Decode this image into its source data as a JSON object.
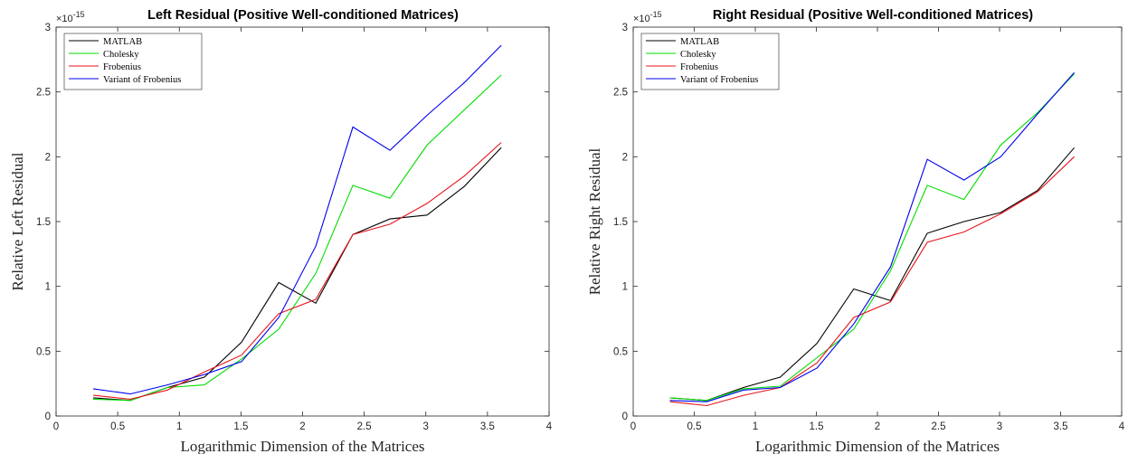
{
  "chart_data": [
    {
      "type": "line",
      "title": "Left Residual (Positive Well-conditioned Matrices)",
      "xlabel": "Logarithmic Dimension of the Matrices",
      "ylabel": "Relative Left Residual",
      "y_exponent_base": "×10",
      "y_exponent_power": "-15",
      "xlim": [
        0,
        4
      ],
      "ylim": [
        0,
        3
      ],
      "xticks": [
        "0",
        "0.5",
        "1",
        "1.5",
        "2",
        "2.5",
        "3",
        "3.5",
        "4"
      ],
      "yticks": [
        "0",
        "0.5",
        "1",
        "1.5",
        "2",
        "2.5",
        "3"
      ],
      "grid": false,
      "legend_position": "top-left",
      "x": [
        0.301,
        0.602,
        0.903,
        1.204,
        1.505,
        1.806,
        2.107,
        2.408,
        2.709,
        3.01,
        3.311,
        3.612
      ],
      "series": [
        {
          "name": "MATLAB",
          "color": "#000000",
          "values": [
            0.14,
            0.12,
            0.22,
            0.3,
            0.57,
            1.03,
            0.87,
            1.4,
            1.52,
            1.55,
            1.77,
            2.07
          ]
        },
        {
          "name": "Cholesky",
          "color": "#00dd00",
          "values": [
            0.13,
            0.12,
            0.22,
            0.24,
            0.44,
            0.67,
            1.1,
            1.78,
            1.68,
            2.09,
            2.36,
            2.63
          ]
        },
        {
          "name": "Frobenius",
          "color": "#e8141e",
          "values": [
            0.16,
            0.13,
            0.2,
            0.34,
            0.47,
            0.79,
            0.9,
            1.4,
            1.48,
            1.64,
            1.85,
            2.11
          ]
        },
        {
          "name": "Variant of Frobenius",
          "color": "#0000ee",
          "values": [
            0.21,
            0.17,
            0.24,
            0.32,
            0.42,
            0.76,
            1.31,
            2.23,
            2.05,
            2.32,
            2.57,
            2.86
          ]
        }
      ]
    },
    {
      "type": "line",
      "title": "Right Residual (Positive Well-conditioned Matrices)",
      "xlabel": "Logarithmic Dimension of the Matrices",
      "ylabel": "Relative Right Residual",
      "y_exponent_base": "×10",
      "y_exponent_power": "-15",
      "xlim": [
        0,
        4
      ],
      "ylim": [
        0,
        3
      ],
      "xticks": [
        "0",
        "0.5",
        "1",
        "1.5",
        "2",
        "2.5",
        "3",
        "3.5",
        "4"
      ],
      "yticks": [
        "0",
        "0.5",
        "1",
        "1.5",
        "2",
        "2.5",
        "3"
      ],
      "grid": false,
      "legend_position": "top-left",
      "x": [
        0.301,
        0.602,
        0.903,
        1.204,
        1.505,
        1.806,
        2.107,
        2.408,
        2.709,
        3.01,
        3.311,
        3.612
      ],
      "series": [
        {
          "name": "MATLAB",
          "color": "#000000",
          "values": [
            0.14,
            0.12,
            0.22,
            0.3,
            0.56,
            0.98,
            0.89,
            1.41,
            1.5,
            1.57,
            1.74,
            2.07
          ]
        },
        {
          "name": "Cholesky",
          "color": "#00dd00",
          "values": [
            0.14,
            0.12,
            0.21,
            0.23,
            0.45,
            0.67,
            1.12,
            1.78,
            1.67,
            2.09,
            2.34,
            2.64
          ]
        },
        {
          "name": "Frobenius",
          "color": "#e8141e",
          "values": [
            0.11,
            0.08,
            0.16,
            0.22,
            0.41,
            0.76,
            0.88,
            1.34,
            1.42,
            1.56,
            1.73,
            2.0
          ]
        },
        {
          "name": "Variant of Frobenius",
          "color": "#0000ee",
          "values": [
            0.12,
            0.11,
            0.2,
            0.22,
            0.37,
            0.71,
            1.15,
            1.98,
            1.82,
            2.0,
            2.33,
            2.65
          ]
        }
      ]
    }
  ]
}
